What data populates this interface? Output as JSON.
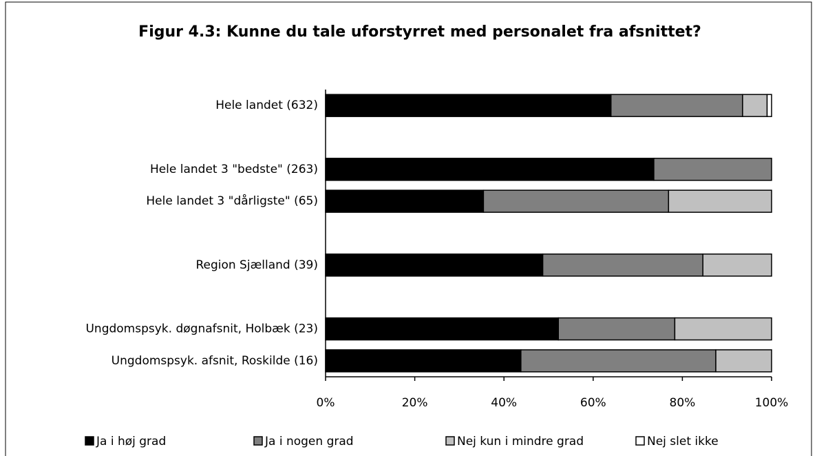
{
  "chart_data": {
    "type": "stacked_barh",
    "title": "Figur 4.3: Kunne du tale uforstyrret med personalet fra afsnittet?",
    "categories": [
      "Hele landet  (632)",
      null,
      "Hele landet 3 \"bedste\" (263)",
      "Hele landet 3 \"dårligste\" (65)",
      null,
      "Region Sjælland (39)",
      null,
      "Ungdomspsyk. døgnafsnit, Holbæk (23)",
      "Ungdomspsyk. afsnit, Roskilde (16)"
    ],
    "series": [
      {
        "name": "Ja i høj grad",
        "color": "#000000",
        "values": [
          64,
          null,
          73.6,
          35.4,
          null,
          48.7,
          null,
          52.2,
          43.8
        ]
      },
      {
        "name": "Ja i nogen grad",
        "color": "#808080",
        "values": [
          29.5,
          null,
          26.4,
          41.5,
          null,
          35.9,
          null,
          26.1,
          43.7
        ]
      },
      {
        "name": "Nej kun i mindre grad",
        "color": "#c0c0c0",
        "values": [
          5.5,
          null,
          0,
          23.1,
          null,
          15.4,
          null,
          21.7,
          12.5
        ]
      },
      {
        "name": "Nej slet ikke",
        "color": "#ffffff",
        "values": [
          1,
          null,
          0,
          0,
          null,
          0,
          null,
          0,
          0
        ]
      }
    ],
    "xlim": [
      0,
      100
    ],
    "xticks": [
      {
        "value": 0,
        "label": "0%"
      },
      {
        "value": 20,
        "label": "20%"
      },
      {
        "value": 40,
        "label": "40%"
      },
      {
        "value": 60,
        "label": "60%"
      },
      {
        "value": 80,
        "label": "80%"
      },
      {
        "value": 100,
        "label": "100%"
      }
    ],
    "legend": "bottom"
  }
}
